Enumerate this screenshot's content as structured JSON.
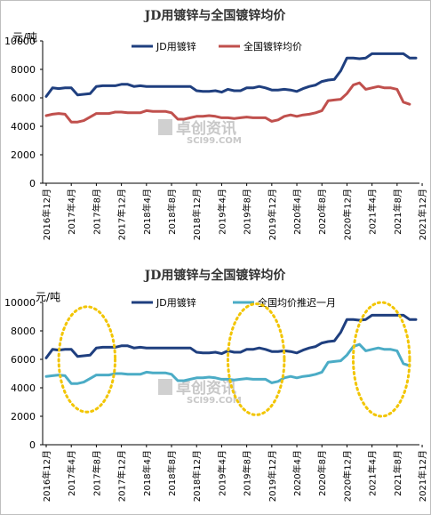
{
  "watermark": {
    "cn": "卓创资讯",
    "en": "SCI99.COM"
  },
  "chart_data": [
    {
      "type": "line",
      "title": "JD用镀锌与全国镀锌均价",
      "ylabel": "元/吨",
      "ylim": [
        0,
        10000
      ],
      "yticks": [
        "0",
        "2000",
        "4000",
        "6000",
        "8000",
        "10000"
      ],
      "xticks": [
        "2016年12月",
        "2017年4月",
        "2017年8月",
        "2017年12月",
        "2018年4月",
        "2018年8月",
        "2018年12月",
        "2019年4月",
        "2019年8月",
        "2019年12月",
        "2020年4月",
        "2020年8月",
        "2020年12月",
        "2021年4月",
        "2021年8月",
        "2021年12月"
      ],
      "legend_position": "top",
      "series": [
        {
          "name": "JD用镀锌",
          "color": "#1f3f7f",
          "values": [
            6100,
            6700,
            6650,
            6700,
            6700,
            6200,
            6250,
            6300,
            6800,
            6850,
            6850,
            6850,
            6950,
            6950,
            6800,
            6850,
            6800,
            6800,
            6800,
            6800,
            6800,
            6800,
            6800,
            6800,
            6500,
            6450,
            6450,
            6500,
            6400,
            6600,
            6500,
            6500,
            6700,
            6700,
            6800,
            6700,
            6550,
            6550,
            6600,
            6550,
            6450,
            6650,
            6800,
            6900,
            7150,
            7250,
            7300,
            7900,
            8800,
            8800,
            8750,
            8800,
            9100,
            9100,
            9100,
            9100,
            9100,
            9100,
            8800,
            8800
          ]
        },
        {
          "name": "全国镀锌均价",
          "color": "#c0504d",
          "values": [
            4750,
            4850,
            4900,
            4850,
            4300,
            4300,
            4400,
            4650,
            4900,
            4900,
            4900,
            5000,
            5000,
            4950,
            4950,
            4950,
            5100,
            5050,
            5050,
            5050,
            4950,
            4500,
            4500,
            4600,
            4700,
            4700,
            4750,
            4700,
            4600,
            4600,
            4550,
            4600,
            4650,
            4600,
            4600,
            4600,
            4350,
            4450,
            4700,
            4800,
            4700,
            4800,
            4850,
            4950,
            5100,
            5800,
            5850,
            5900,
            6300,
            6900,
            7050,
            6600,
            6700,
            6800,
            6700,
            6700,
            6600,
            5700,
            5550
          ]
        }
      ]
    },
    {
      "type": "line",
      "title": "JD用镀锌与全国镀锌均价",
      "ylabel": "元/吨",
      "ylim": [
        0,
        10000
      ],
      "yticks": [
        "0",
        "2000",
        "4000",
        "6000",
        "8000",
        "10000"
      ],
      "xticks": [
        "2016年12月",
        "2017年4月",
        "2017年8月",
        "2017年12月",
        "2018年4月",
        "2018年8月",
        "2018年12月",
        "2019年4月",
        "2019年8月",
        "2019年12月",
        "2020年4月",
        "2020年8月",
        "2020年12月",
        "2021年4月",
        "2021年8月",
        "2021年12月"
      ],
      "legend_position": "top",
      "series": [
        {
          "name": "JD用镀锌",
          "color": "#1f3f7f",
          "values": [
            6100,
            6700,
            6650,
            6700,
            6700,
            6200,
            6250,
            6300,
            6800,
            6850,
            6850,
            6850,
            6950,
            6950,
            6800,
            6850,
            6800,
            6800,
            6800,
            6800,
            6800,
            6800,
            6800,
            6800,
            6500,
            6450,
            6450,
            6500,
            6400,
            6600,
            6500,
            6500,
            6700,
            6700,
            6800,
            6700,
            6550,
            6550,
            6600,
            6550,
            6450,
            6650,
            6800,
            6900,
            7150,
            7250,
            7300,
            7900,
            8800,
            8800,
            8750,
            8800,
            9100,
            9100,
            9100,
            9100,
            9100,
            9100,
            8800,
            8800
          ]
        },
        {
          "name": "全国均价推迟一月",
          "color": "#4bacc6",
          "values": [
            4800,
            4850,
            4900,
            4850,
            4300,
            4300,
            4400,
            4650,
            4900,
            4900,
            4900,
            5000,
            5000,
            4950,
            4950,
            4950,
            5100,
            5050,
            5050,
            5050,
            4950,
            4500,
            4500,
            4600,
            4700,
            4700,
            4750,
            4700,
            4600,
            4600,
            4550,
            4600,
            4650,
            4600,
            4600,
            4600,
            4350,
            4450,
            4700,
            4800,
            4700,
            4800,
            4850,
            4950,
            5100,
            5800,
            5850,
            5900,
            6300,
            6900,
            7050,
            6600,
            6700,
            6800,
            6700,
            6700,
            6600,
            5700,
            5550
          ]
        }
      ],
      "annotations": [
        {
          "type": "ellipse",
          "color": "#f2c500",
          "x_center_index": 6.5,
          "y_center": 6000,
          "x_radius_months": 4.5,
          "y_radius": 3700
        },
        {
          "type": "ellipse",
          "color": "#f2c500",
          "x_center_index": 33.5,
          "y_center": 6000,
          "x_radius_months": 4.5,
          "y_radius": 3900
        },
        {
          "type": "ellipse",
          "color": "#f2c500",
          "x_center_index": 53.5,
          "y_center": 6000,
          "x_radius_months": 4.5,
          "y_radius": 4000
        }
      ]
    }
  ]
}
